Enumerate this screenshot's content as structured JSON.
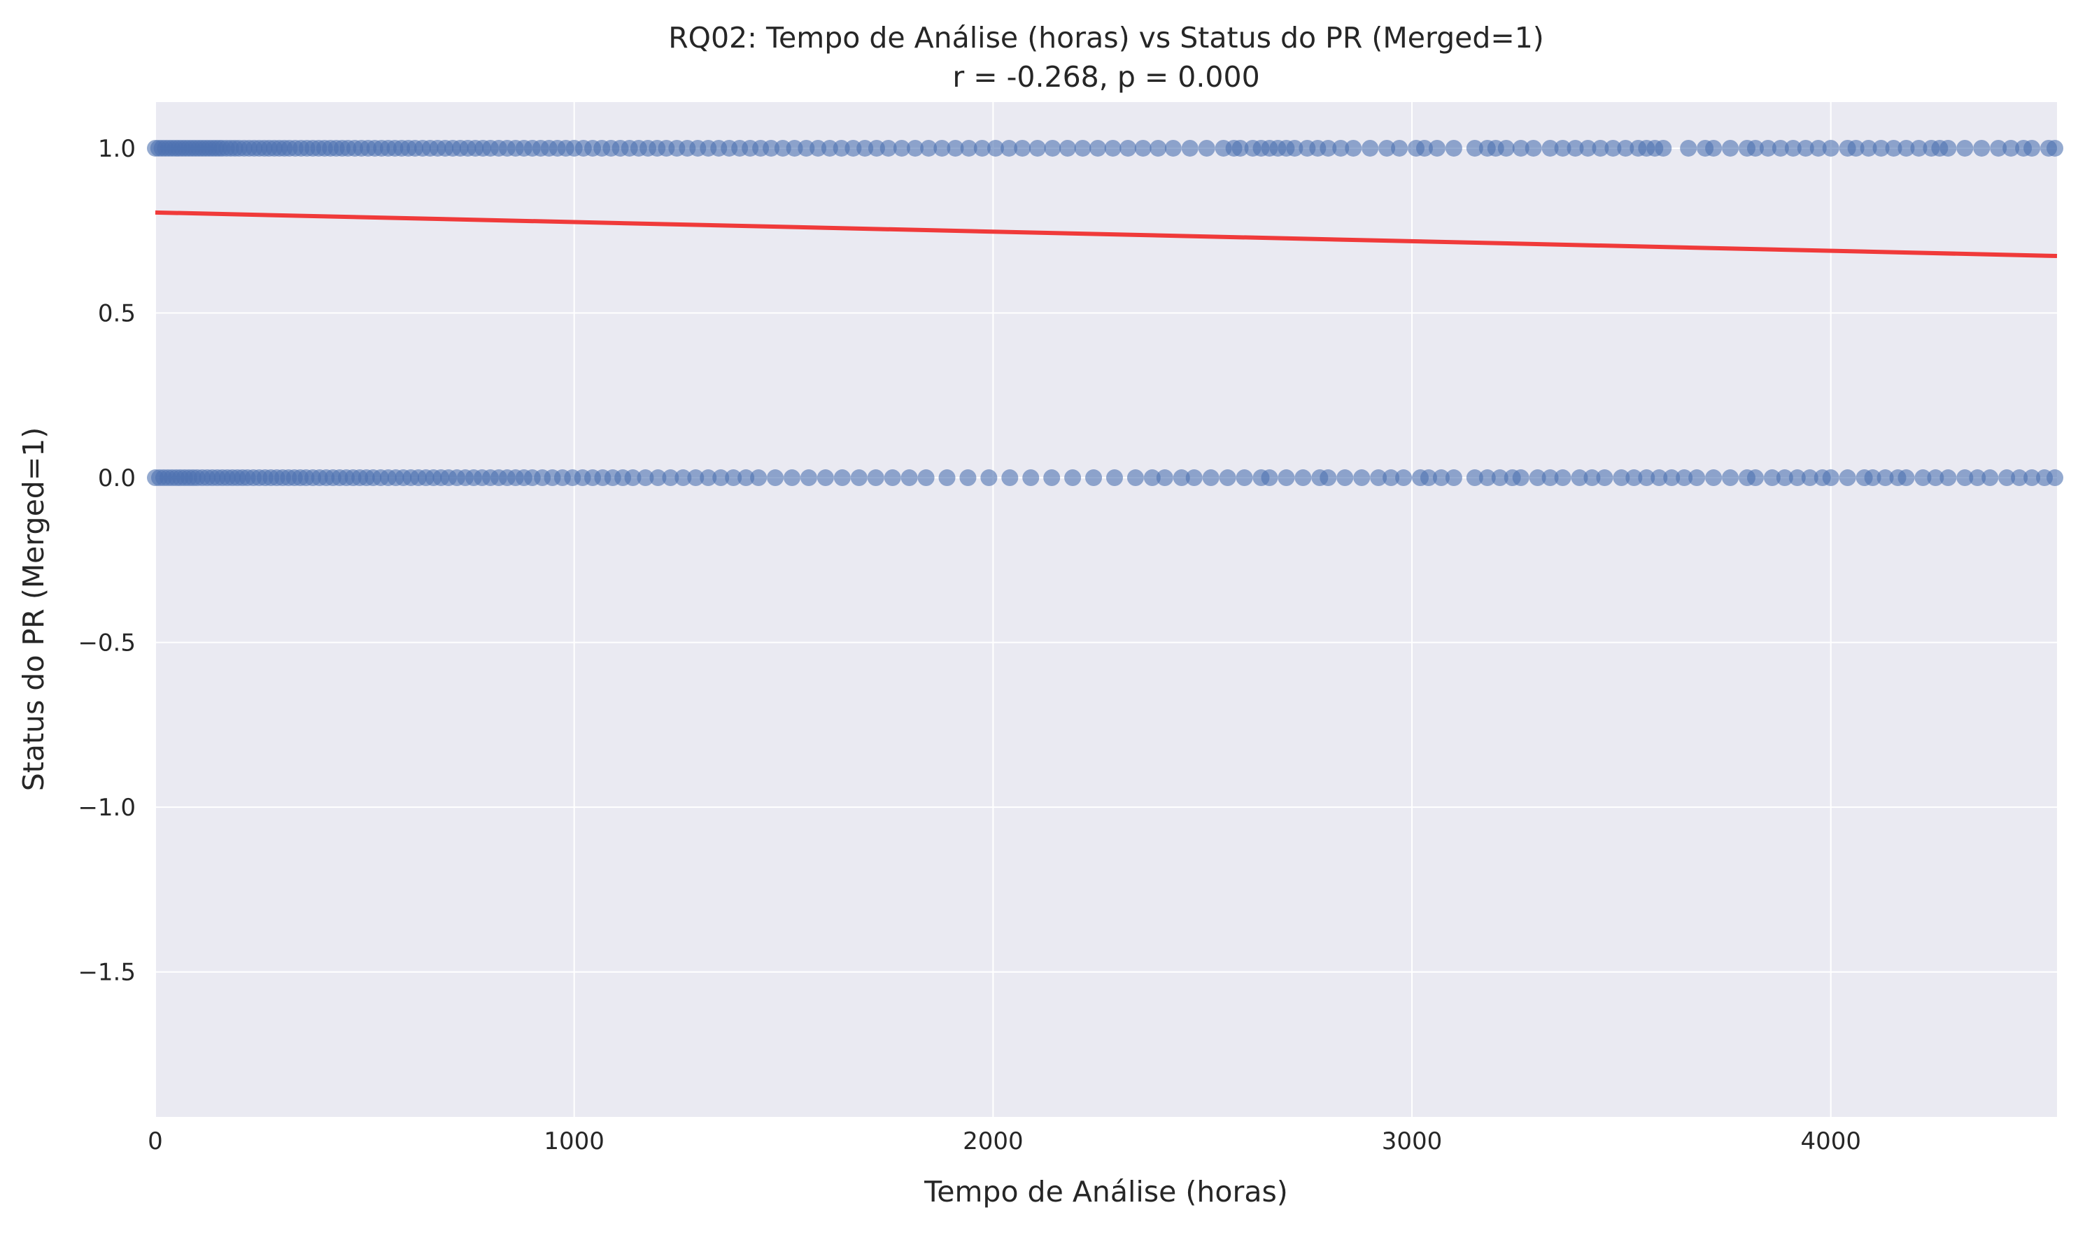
{
  "chart_data": {
    "type": "scatter",
    "title": "RQ02: Tempo de Análise (horas) vs Status do PR (Merged=1)",
    "subtitle": "r = -0.268, p = 0.000",
    "xlabel": "Tempo de Análise (horas)",
    "ylabel": "Status do PR (Merged=1)",
    "xlim": [
      0,
      4540
    ],
    "ylim": [
      -1.94,
      1.14
    ],
    "x_ticks": [
      0,
      1000,
      2000,
      3000,
      4000
    ],
    "x_tick_labels": [
      "0",
      "1000",
      "2000",
      "3000",
      "4000"
    ],
    "y_ticks": [
      1.0,
      0.5,
      0.0,
      -0.5,
      -1.0,
      -1.5
    ],
    "y_tick_labels": [
      "1.0",
      "0.5",
      "0.0",
      "−0.5",
      "−1.0",
      "−1.5"
    ],
    "grid": true,
    "colors": {
      "points": "#4c72b0",
      "trend_line": "#f03a3a",
      "plot_background": "#eaeaf2",
      "grid": "#ffffff"
    },
    "series": [
      {
        "y": 1,
        "x": [
          0,
          8,
          16,
          24,
          32,
          40,
          48,
          56,
          64,
          72,
          80,
          88,
          96,
          104,
          112,
          120,
          128,
          136,
          144,
          152,
          160,
          170,
          180,
          190,
          200,
          212,
          224,
          236,
          248,
          260,
          272,
          284,
          296,
          308,
          320,
          334,
          348,
          362,
          376,
          390,
          404,
          418,
          432,
          446,
          460,
          476,
          492,
          508,
          524,
          540,
          556,
          572,
          588,
          604,
          620,
          638,
          656,
          674,
          692,
          710,
          728,
          746,
          764,
          782,
          800,
          820,
          840,
          860,
          880,
          900,
          920,
          940,
          960,
          980,
          1000,
          1022,
          1044,
          1066,
          1088,
          1110,
          1132,
          1154,
          1176,
          1198,
          1220,
          1245,
          1270,
          1295,
          1320,
          1345,
          1370,
          1395,
          1420,
          1445,
          1470,
          1498,
          1526,
          1554,
          1582,
          1610,
          1638,
          1666,
          1694,
          1722,
          1750,
          1782,
          1814,
          1846,
          1878,
          1910,
          1942,
          1974,
          2006,
          2038,
          2070,
          2106,
          2142,
          2178,
          2214,
          2250,
          2286,
          2322,
          2358,
          2394,
          2430,
          2470,
          2510,
          2550,
          2575,
          2590,
          2620,
          2640,
          2660,
          2680,
          2700,
          2720,
          2750,
          2775,
          2800,
          2830,
          2860,
          2900,
          2940,
          2970,
          3010,
          3030,
          3060,
          3100,
          3150,
          3180,
          3200,
          3225,
          3260,
          3290,
          3330,
          3360,
          3390,
          3420,
          3450,
          3480,
          3510,
          3540,
          3560,
          3580,
          3600,
          3660,
          3700,
          3720,
          3760,
          3800,
          3820,
          3850,
          3880,
          3910,
          3940,
          3970,
          4000,
          4040,
          4060,
          4090,
          4120,
          4150,
          4180,
          4210,
          4240,
          4260,
          4280,
          4320,
          4360,
          4400,
          4430,
          4460,
          4480,
          4520,
          4535
        ]
      },
      {
        "y": 0,
        "x": [
          0,
          10,
          20,
          30,
          40,
          50,
          60,
          70,
          80,
          90,
          100,
          112,
          124,
          136,
          148,
          160,
          172,
          184,
          196,
          208,
          220,
          234,
          248,
          262,
          276,
          290,
          304,
          318,
          332,
          346,
          360,
          376,
          392,
          408,
          424,
          440,
          456,
          472,
          488,
          504,
          520,
          538,
          556,
          574,
          592,
          610,
          628,
          646,
          664,
          682,
          700,
          720,
          740,
          760,
          780,
          800,
          820,
          840,
          860,
          880,
          900,
          924,
          948,
          972,
          996,
          1020,
          1044,
          1068,
          1092,
          1116,
          1140,
          1170,
          1200,
          1230,
          1260,
          1290,
          1320,
          1350,
          1380,
          1410,
          1440,
          1480,
          1520,
          1560,
          1600,
          1640,
          1680,
          1720,
          1760,
          1800,
          1840,
          1890,
          1940,
          1990,
          2040,
          2090,
          2140,
          2190,
          2240,
          2290,
          2340,
          2380,
          2410,
          2450,
          2480,
          2520,
          2560,
          2600,
          2640,
          2660,
          2700,
          2740,
          2780,
          2800,
          2840,
          2880,
          2920,
          2950,
          2980,
          3020,
          3040,
          3070,
          3100,
          3150,
          3180,
          3210,
          3240,
          3260,
          3300,
          3330,
          3360,
          3400,
          3430,
          3460,
          3500,
          3530,
          3560,
          3590,
          3620,
          3650,
          3680,
          3720,
          3760,
          3800,
          3820,
          3860,
          3890,
          3920,
          3950,
          3980,
          4000,
          4040,
          4080,
          4100,
          4130,
          4160,
          4180,
          4220,
          4250,
          4280,
          4320,
          4350,
          4380,
          4420,
          4450,
          4480,
          4510,
          4535
        ]
      }
    ],
    "trend_line": {
      "x": [
        0,
        4540
      ],
      "y": [
        0.805,
        0.673
      ]
    }
  }
}
